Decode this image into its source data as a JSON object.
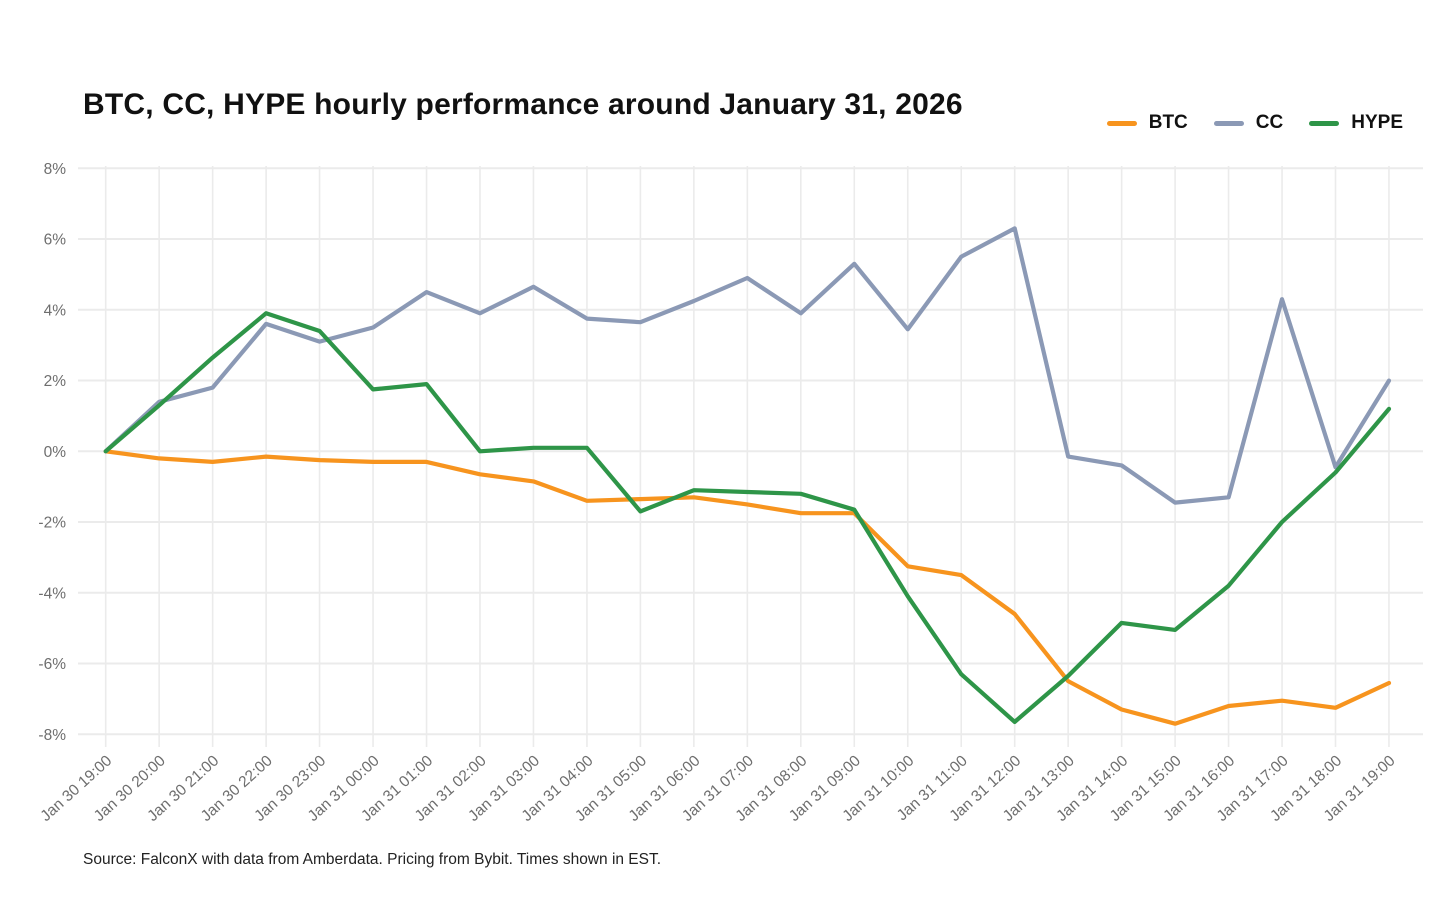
{
  "header": {
    "title": "BTC, CC, HYPE hourly performance around January 31, 2026"
  },
  "legend": {
    "items": [
      {
        "label": "BTC",
        "color": "#F7941E"
      },
      {
        "label": "CC",
        "color": "#8B99B5"
      },
      {
        "label": "HYPE",
        "color": "#2E9548"
      }
    ]
  },
  "chart_data": {
    "type": "line",
    "title": "BTC, CC, HYPE hourly performance around January 31, 2026",
    "xlabel": "",
    "ylabel": "",
    "ylim": [
      -8,
      8
    ],
    "grid": true,
    "legend_position": "top-right",
    "x_categories": [
      "Jan 30 19:00",
      "Jan 30 20:00",
      "Jan 30 21:00",
      "Jan 30 22:00",
      "Jan 30 23:00",
      "Jan 31 00:00",
      "Jan 31 01:00",
      "Jan 31 02:00",
      "Jan 31 03:00",
      "Jan 31 04:00",
      "Jan 31 05:00",
      "Jan 31 06:00",
      "Jan 31 07:00",
      "Jan 31 08:00",
      "Jan 31 09:00",
      "Jan 31 10:00",
      "Jan 31 11:00",
      "Jan 31 12:00",
      "Jan 31 13:00",
      "Jan 31 14:00",
      "Jan 31 15:00",
      "Jan 31 16:00",
      "Jan 31 17:00",
      "Jan 31 18:00",
      "Jan 31 19:00"
    ],
    "y_ticks": [
      {
        "label": "8%",
        "value": 8
      },
      {
        "label": "6%",
        "value": 6
      },
      {
        "label": "4%",
        "value": 4
      },
      {
        "label": "2%",
        "value": 2
      },
      {
        "label": "0%",
        "value": 0
      },
      {
        "label": "-2%",
        "value": -2
      },
      {
        "label": "-4%",
        "value": -4
      },
      {
        "label": "-6%",
        "value": -6
      },
      {
        "label": "-8%",
        "value": -8
      }
    ],
    "series": [
      {
        "name": "BTC",
        "color": "#F7941E",
        "values": [
          0,
          -0.2,
          -0.3,
          -0.15,
          -0.25,
          -0.3,
          -0.3,
          -0.65,
          -0.85,
          -1.4,
          -1.35,
          -1.3,
          -1.5,
          -1.75,
          -1.75,
          -3.25,
          -3.5,
          -4.6,
          -6.5,
          -7.3,
          -7.7,
          -7.2,
          -7.05,
          -7.25,
          -6.55
        ]
      },
      {
        "name": "CC",
        "color": "#8B99B5",
        "values": [
          0,
          1.4,
          1.8,
          3.6,
          3.1,
          3.5,
          4.5,
          3.9,
          4.65,
          3.75,
          3.65,
          4.25,
          4.9,
          3.9,
          5.3,
          3.45,
          5.5,
          6.3,
          -0.15,
          -0.4,
          -1.45,
          -1.3,
          4.3,
          -0.45,
          2.0
        ]
      },
      {
        "name": "HYPE",
        "color": "#2E9548",
        "values": [
          0,
          1.3,
          2.65,
          3.9,
          3.4,
          1.75,
          1.9,
          0.0,
          0.1,
          0.1,
          -1.7,
          -1.1,
          -1.15,
          -1.2,
          -1.65,
          -4.1,
          -6.3,
          -7.65,
          -6.35,
          -4.85,
          -5.05,
          -3.8,
          -2.0,
          -0.6,
          1.2
        ]
      }
    ]
  },
  "footer": {
    "source": "Source: FalconX with data from Amberdata. Pricing from Bybit. Times shown in EST."
  }
}
